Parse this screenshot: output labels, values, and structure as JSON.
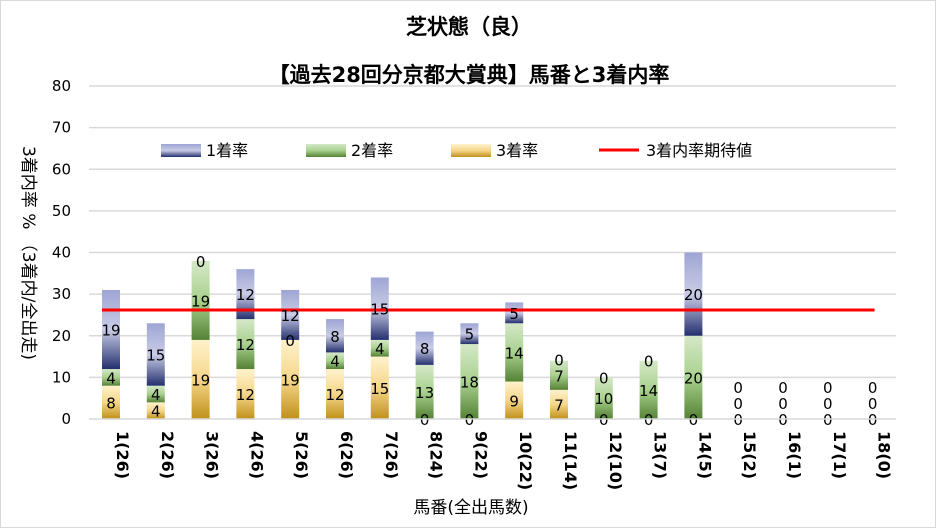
{
  "chart_data": {
    "type": "bar",
    "stacked": true,
    "title": "芝状態（良）",
    "subtitle": "【過去28回分京都大賞典】馬番と3着内率",
    "xlabel": "馬番(全出馬数)",
    "ylabel": "3着内率 % （3着内/全出走)",
    "ylim": [
      0,
      80
    ],
    "yticks": [
      0,
      10,
      20,
      30,
      40,
      50,
      60,
      70,
      80
    ],
    "grid": true,
    "legend_position": "top",
    "categories": [
      "1(26)",
      "2(26)",
      "3(26)",
      "4(26)",
      "5(26)",
      "6(26)",
      "7(26)",
      "8(24)",
      "9(22)",
      "10(22)",
      "11(14)",
      "12(10)",
      "13(7)",
      "14(5)",
      "15(2)",
      "16(1)",
      "17(1)",
      "18(0)"
    ],
    "series": [
      {
        "name": "3着率",
        "color": "#d9a53a",
        "values": [
          8,
          4,
          19,
          12,
          19,
          12,
          15,
          0,
          0,
          9,
          7,
          0,
          0,
          0,
          0,
          0,
          0,
          0
        ]
      },
      {
        "name": "2着率",
        "color": "#70ad47",
        "values": [
          4,
          4,
          19,
          12,
          0,
          4,
          4,
          13,
          18,
          14,
          7,
          10,
          14,
          20,
          0,
          0,
          0,
          0
        ]
      },
      {
        "name": "1着率",
        "color": "#3c4a9a",
        "values": [
          19,
          15,
          0,
          12,
          12,
          8,
          15,
          8,
          5,
          5,
          0,
          0,
          0,
          20,
          0,
          0,
          0,
          0
        ]
      }
    ],
    "reference_line": {
      "name": "3着内率期待値",
      "value": 26.2,
      "color": "#ff0000"
    }
  }
}
